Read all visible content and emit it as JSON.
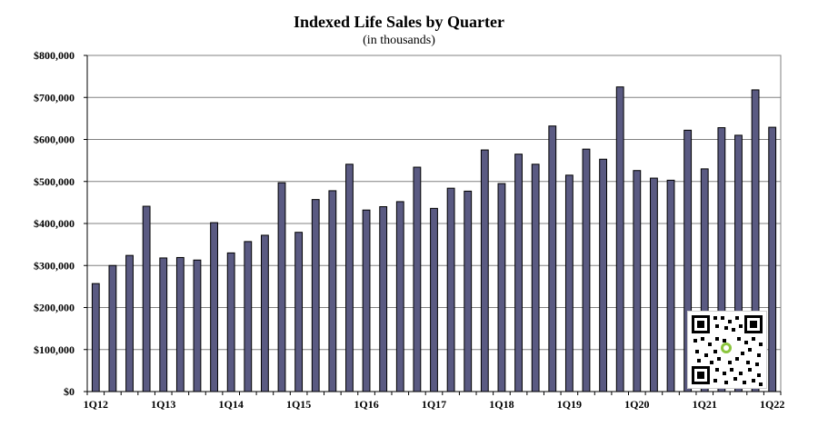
{
  "chart_data": {
    "type": "bar",
    "title": "Indexed Life Sales by Quarter",
    "subtitle": "(in thousands)",
    "xlabel": "",
    "ylabel": "",
    "ylim": [
      0,
      800000
    ],
    "yticks": [
      "$0",
      "$100,000",
      "$200,000",
      "$300,000",
      "$400,000",
      "$500,000",
      "$600,000",
      "$700,000",
      "$800,000"
    ],
    "grid": true,
    "bar_color": "#5a5a82",
    "categories": [
      "1Q12",
      "2Q12",
      "3Q12",
      "4Q12",
      "1Q13",
      "2Q13",
      "3Q13",
      "4Q13",
      "1Q14",
      "2Q14",
      "3Q14",
      "4Q14",
      "1Q15",
      "2Q15",
      "3Q15",
      "4Q15",
      "1Q16",
      "2Q16",
      "3Q16",
      "4Q16",
      "1Q17",
      "2Q17",
      "3Q17",
      "4Q17",
      "1Q18",
      "2Q18",
      "3Q18",
      "4Q18",
      "1Q19",
      "2Q19",
      "3Q19",
      "4Q19",
      "1Q20",
      "2Q20",
      "3Q20",
      "4Q20",
      "1Q21",
      "2Q21",
      "3Q21",
      "4Q21",
      "1Q22"
    ],
    "xtick_labels": [
      "1Q12",
      "1Q13",
      "1Q14",
      "1Q15",
      "1Q16",
      "1Q17",
      "1Q18",
      "1Q19",
      "1Q20",
      "1Q21",
      "1Q22"
    ],
    "values": [
      257000,
      300000,
      324000,
      441000,
      318000,
      319000,
      313000,
      402000,
      330000,
      357000,
      372000,
      497000,
      379000,
      457000,
      478000,
      541000,
      432000,
      440000,
      452000,
      534000,
      436000,
      484000,
      477000,
      575000,
      495000,
      565000,
      541000,
      632000,
      515000,
      577000,
      553000,
      725000,
      526000,
      508000,
      503000,
      622000,
      530000,
      628000,
      610000,
      718000,
      629000
    ]
  },
  "overlay": {
    "qr_code_icon": "qr-code-icon"
  }
}
